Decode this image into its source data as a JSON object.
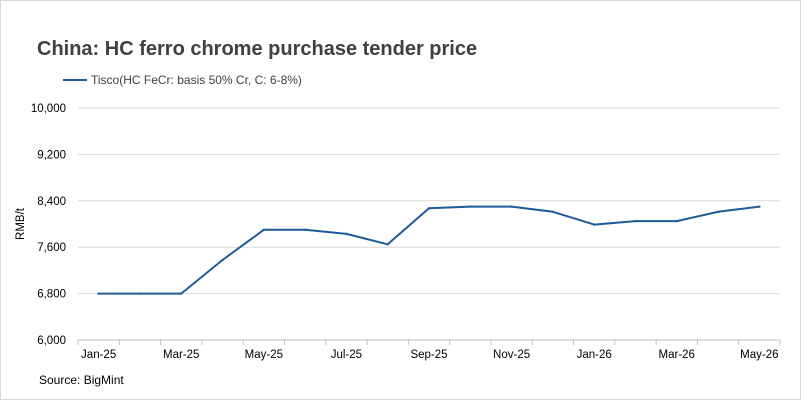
{
  "title": "China: HC ferro chrome purchase tender price",
  "source": "Source: BigMint",
  "colors": {
    "series": "#1f5b99",
    "grid": "#d9d9d9",
    "axis": "#bfbfbf"
  },
  "chart_data": {
    "type": "line",
    "title": "China: HC ferro chrome purchase tender price",
    "ylabel": "RMB/t",
    "xlabel": "",
    "ylim": [
      6000,
      10000
    ],
    "yticks": [
      6000,
      6800,
      7600,
      8400,
      9200,
      10000
    ],
    "ytick_labels": [
      "6,000",
      "6,800",
      "7,600",
      "8,400",
      "9,200",
      "10,000"
    ],
    "categories": [
      "Jan-25",
      "Feb-25",
      "Mar-25",
      "Apr-25",
      "May-25",
      "Jun-25",
      "Jul-25",
      "Aug-25",
      "Sep-25",
      "Oct-25",
      "Nov-25",
      "Dec-25",
      "Jan-26",
      "Feb-26",
      "Mar-26",
      "Apr-26",
      "May-26"
    ],
    "xtick_labels": [
      "Jan-25",
      "Mar-25",
      "May-25",
      "Jul-25",
      "Sep-25",
      "Nov-25",
      "Jan-26",
      "Mar-26",
      "May-26"
    ],
    "legend_position": "top-left",
    "grid": true,
    "series": [
      {
        "name": "Tisco(HC FeCr: basis 50% Cr, C: 6-8%)",
        "values": [
          6800,
          6800,
          6800,
          7380,
          7900,
          7900,
          7830,
          7650,
          8270,
          8300,
          8300,
          8210,
          7990,
          8050,
          8050,
          8210,
          8300
        ]
      }
    ]
  }
}
